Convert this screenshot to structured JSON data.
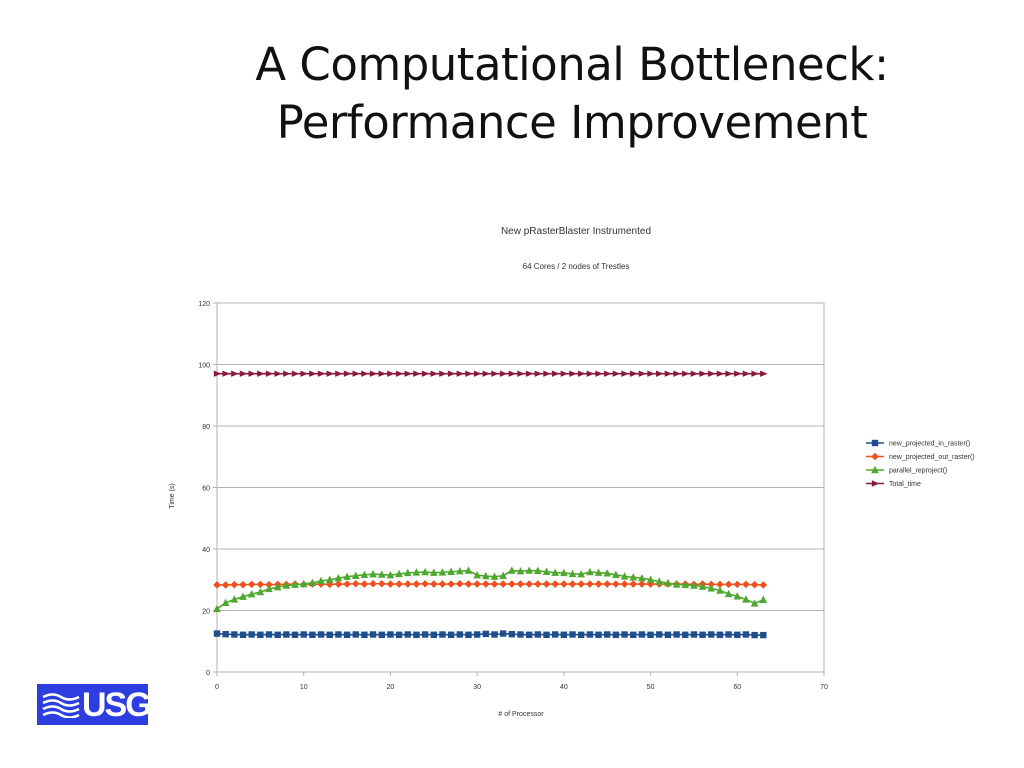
{
  "slide": {
    "title_line1": "A Computational Bottleneck:",
    "title_line2": "Performance Improvement"
  },
  "logo": {
    "text": "USG"
  },
  "chart_data": {
    "type": "line",
    "title": "New pRasterBlaster Instrumented",
    "subtitle": "64 Cores / 2 nodes of Trestles",
    "xlabel": "# of Processor",
    "ylabel": "Time (s)",
    "xlim": [
      0,
      70
    ],
    "ylim": [
      0,
      120
    ],
    "xticks": [
      0,
      10,
      20,
      30,
      40,
      50,
      60,
      70
    ],
    "yticks": [
      0,
      20,
      40,
      60,
      80,
      100,
      120
    ],
    "grid": "horizontal",
    "legend_position": "right",
    "series": [
      {
        "name": "new_projected_in_raster()",
        "color": "#1f4e8c",
        "marker": "square",
        "values": [
          12.5,
          12.3,
          12.2,
          12.1,
          12.2,
          12.1,
          12.2,
          12.1,
          12.2,
          12.1,
          12.2,
          12.1,
          12.2,
          12.1,
          12.2,
          12.1,
          12.2,
          12.1,
          12.2,
          12.1,
          12.2,
          12.1,
          12.2,
          12.1,
          12.2,
          12.1,
          12.2,
          12.1,
          12.2,
          12.1,
          12.2,
          12.4,
          12.2,
          12.5,
          12.3,
          12.2,
          12.1,
          12.2,
          12.1,
          12.2,
          12.1,
          12.2,
          12.1,
          12.2,
          12.1,
          12.2,
          12.1,
          12.2,
          12.1,
          12.2,
          12.1,
          12.2,
          12.1,
          12.2,
          12.1,
          12.2,
          12.1,
          12.2,
          12.1,
          12.2,
          12.1,
          12.2,
          12.0,
          12.0
        ]
      },
      {
        "name": "new_projected_out_raster()",
        "color": "#f0501e",
        "marker": "diamond",
        "values": [
          28.3,
          28.3,
          28.4,
          28.4,
          28.5,
          28.5,
          28.4,
          28.5,
          28.5,
          28.6,
          28.5,
          28.6,
          28.6,
          28.5,
          28.6,
          28.6,
          28.7,
          28.6,
          28.7,
          28.7,
          28.6,
          28.6,
          28.6,
          28.6,
          28.7,
          28.6,
          28.6,
          28.6,
          28.7,
          28.6,
          28.6,
          28.6,
          28.6,
          28.6,
          28.6,
          28.6,
          28.6,
          28.6,
          28.6,
          28.6,
          28.6,
          28.6,
          28.6,
          28.6,
          28.6,
          28.6,
          28.6,
          28.6,
          28.6,
          28.6,
          28.6,
          28.6,
          28.6,
          28.6,
          28.6,
          28.5,
          28.6,
          28.5,
          28.5,
          28.5,
          28.5,
          28.5,
          28.4,
          28.3
        ]
      },
      {
        "name": "parallel_reproject()",
        "color": "#4ea72e",
        "marker": "triangle",
        "values": [
          20.5,
          22.5,
          23.6,
          24.5,
          25.3,
          26.0,
          27.0,
          27.6,
          28.1,
          28.4,
          28.6,
          29.0,
          29.6,
          30.0,
          30.5,
          31.0,
          31.3,
          31.6,
          31.8,
          31.7,
          31.5,
          31.9,
          32.2,
          32.4,
          32.5,
          32.3,
          32.4,
          32.6,
          32.8,
          33.0,
          31.5,
          31.2,
          31.0,
          31.3,
          33.0,
          32.8,
          33.0,
          32.9,
          32.6,
          32.3,
          32.2,
          31.9,
          31.8,
          32.5,
          32.3,
          32.1,
          31.6,
          31.1,
          30.8,
          30.5,
          30.0,
          29.4,
          28.9,
          28.5,
          28.3,
          28.1,
          27.8,
          27.2,
          26.5,
          25.4,
          24.6,
          23.6,
          22.3,
          23.5
        ]
      },
      {
        "name": "Total_time",
        "color": "#8b1a3a",
        "marker": "arrow-right",
        "values": [
          97,
          97,
          97,
          97,
          97,
          97,
          97,
          97,
          97,
          97,
          97,
          97,
          97,
          97,
          97,
          97,
          97,
          97,
          97,
          97,
          97,
          97,
          97,
          97,
          97,
          97,
          97,
          97,
          97,
          97,
          97,
          97,
          97,
          97,
          97,
          97,
          97,
          97,
          97,
          97,
          97,
          97,
          97,
          97,
          97,
          97,
          97,
          97,
          97,
          97,
          97,
          97,
          97,
          97,
          97,
          97,
          97,
          97,
          97,
          97,
          97,
          97,
          97,
          97
        ]
      }
    ]
  }
}
